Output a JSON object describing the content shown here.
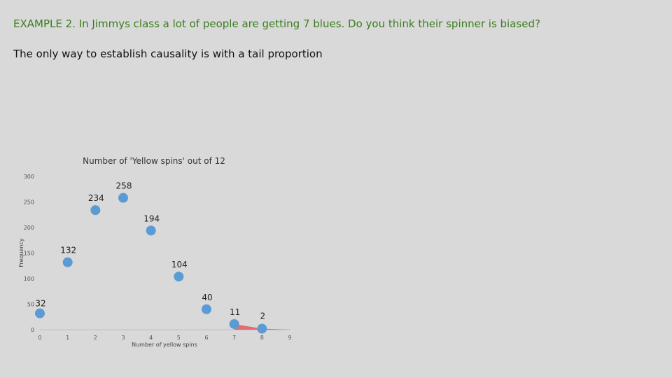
{
  "slide": {
    "heading": "EXAMPLE 2. In Jimmys class a lot of people are getting 7 blues. Do you think their spinner is biased?",
    "subheading": "The only way to establish causality is with a tail proportion"
  },
  "chart_data": {
    "type": "scatter",
    "title": "Number of 'Yellow spins' out of 12",
    "xlabel": "Number of yellow spins",
    "ylabel": "Frequency",
    "xlim": [
      0,
      9
    ],
    "ylim": [
      0,
      300
    ],
    "xticks": [
      "0",
      "1",
      "2",
      "3",
      "4",
      "5",
      "6",
      "7",
      "8",
      "9"
    ],
    "yticks": [
      "0",
      "50",
      "100",
      "150",
      "200",
      "250",
      "300"
    ],
    "grid": false,
    "legend": "none",
    "series": [
      {
        "x": [
          0,
          1,
          2,
          3,
          4,
          5,
          6,
          7,
          8
        ],
        "values": [
          32,
          132,
          234,
          258,
          194,
          104,
          40,
          11,
          2
        ],
        "labels": [
          "32",
          "132",
          "234",
          "258",
          "194",
          "104",
          "40",
          "11",
          "2"
        ]
      }
    ],
    "shaded_tail": {
      "from_x": 7,
      "to_x": 9
    },
    "colors": {
      "point": "#5b9bd5",
      "tail": "#e8474b"
    }
  }
}
